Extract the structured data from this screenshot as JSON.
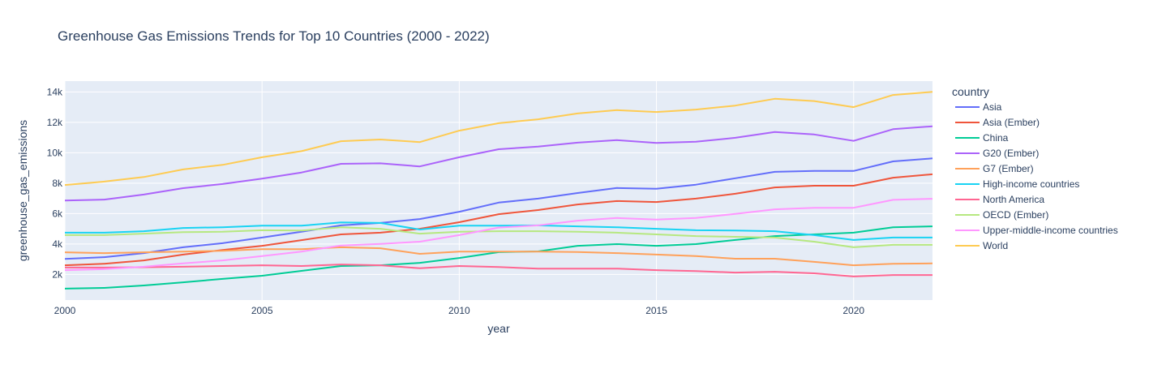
{
  "chart_data": {
    "type": "line",
    "title": "Greenhouse Gas Emissions Trends for Top 10 Countries (2000 - 2022)",
    "xlabel": "year",
    "ylabel": "greenhouse_gas_emissions",
    "xlim": [
      2000,
      2022
    ],
    "ylim": [
      310,
      14710
    ],
    "xticks": [
      2000,
      2005,
      2010,
      2015,
      2020
    ],
    "xtick_labels": [
      "2000",
      "2005",
      "2010",
      "2015",
      "2020"
    ],
    "yticks": [
      2000,
      4000,
      6000,
      8000,
      10000,
      12000,
      14000
    ],
    "ytick_labels": [
      "2k",
      "4k",
      "6k",
      "8k",
      "10k",
      "12k",
      "14k"
    ],
    "grid": true,
    "legend_title": "country",
    "legend_position": "right",
    "x": [
      2000,
      2001,
      2002,
      2003,
      2004,
      2005,
      2006,
      2007,
      2008,
      2009,
      2010,
      2011,
      2012,
      2013,
      2014,
      2015,
      2016,
      2017,
      2018,
      2019,
      2020,
      2021,
      2022
    ],
    "series": [
      {
        "name": "Asia",
        "color": "#636efa",
        "values": [
          3020,
          3130,
          3400,
          3780,
          4050,
          4420,
          4800,
          5220,
          5380,
          5640,
          6120,
          6720,
          6980,
          7350,
          7680,
          7630,
          7900,
          8320,
          8740,
          8800,
          8800,
          9430,
          9630
        ]
      },
      {
        "name": "Asia (Ember)",
        "color": "#EF553B",
        "values": [
          2600,
          2700,
          2920,
          3300,
          3600,
          3880,
          4250,
          4630,
          4740,
          5000,
          5430,
          5960,
          6230,
          6600,
          6820,
          6760,
          6980,
          7300,
          7720,
          7830,
          7830,
          8360,
          8580
        ]
      },
      {
        "name": "China",
        "color": "#00cc96",
        "values": [
          1060,
          1110,
          1270,
          1480,
          1700,
          1910,
          2230,
          2550,
          2600,
          2760,
          3080,
          3460,
          3510,
          3880,
          3990,
          3880,
          3990,
          4260,
          4520,
          4630,
          4740,
          5100,
          5160
        ]
      },
      {
        "name": "G20 (Ember)",
        "color": "#ab63fa",
        "values": [
          6860,
          6920,
          7250,
          7670,
          7940,
          8300,
          8700,
          9270,
          9300,
          9100,
          9700,
          10230,
          10400,
          10660,
          10830,
          10640,
          10720,
          10980,
          11360,
          11200,
          10780,
          11550,
          11740
        ]
      },
      {
        "name": "G7 (Ember)",
        "color": "#FFA15A",
        "values": [
          3450,
          3400,
          3450,
          3500,
          3550,
          3660,
          3660,
          3780,
          3720,
          3350,
          3500,
          3500,
          3500,
          3470,
          3400,
          3300,
          3200,
          3030,
          3030,
          2820,
          2600,
          2700,
          2720
        ]
      },
      {
        "name": "High-income countries",
        "color": "#19d3f3",
        "values": [
          4740,
          4740,
          4840,
          5050,
          5100,
          5200,
          5200,
          5420,
          5380,
          4950,
          5200,
          5200,
          5220,
          5160,
          5100,
          5000,
          4900,
          4880,
          4840,
          4580,
          4260,
          4420,
          4420
        ]
      },
      {
        "name": "North America",
        "color": "#FF6692",
        "values": [
          2450,
          2450,
          2470,
          2500,
          2550,
          2600,
          2550,
          2650,
          2600,
          2400,
          2550,
          2480,
          2380,
          2380,
          2380,
          2280,
          2220,
          2120,
          2170,
          2070,
          1860,
          1960,
          1960
        ]
      },
      {
        "name": "OECD (Ember)",
        "color": "#B6E880",
        "values": [
          4580,
          4580,
          4680,
          4780,
          4800,
          4900,
          4880,
          5100,
          5000,
          4680,
          4800,
          4840,
          4840,
          4800,
          4740,
          4630,
          4520,
          4470,
          4420,
          4150,
          3780,
          3940,
          3940
        ]
      },
      {
        "name": "Upper-middle-income countries",
        "color": "#FF97FF",
        "values": [
          2280,
          2350,
          2500,
          2720,
          2920,
          3200,
          3500,
          3900,
          4000,
          4150,
          4580,
          5080,
          5220,
          5530,
          5710,
          5600,
          5710,
          5980,
          6280,
          6380,
          6380,
          6900,
          6970
        ]
      },
      {
        "name": "World",
        "color": "#FECB52",
        "values": [
          7880,
          8100,
          8400,
          8900,
          9200,
          9700,
          10100,
          10760,
          10870,
          10700,
          11450,
          11940,
          12200,
          12580,
          12800,
          12680,
          12840,
          13100,
          13550,
          13400,
          13000,
          13800,
          14000
        ]
      }
    ]
  }
}
